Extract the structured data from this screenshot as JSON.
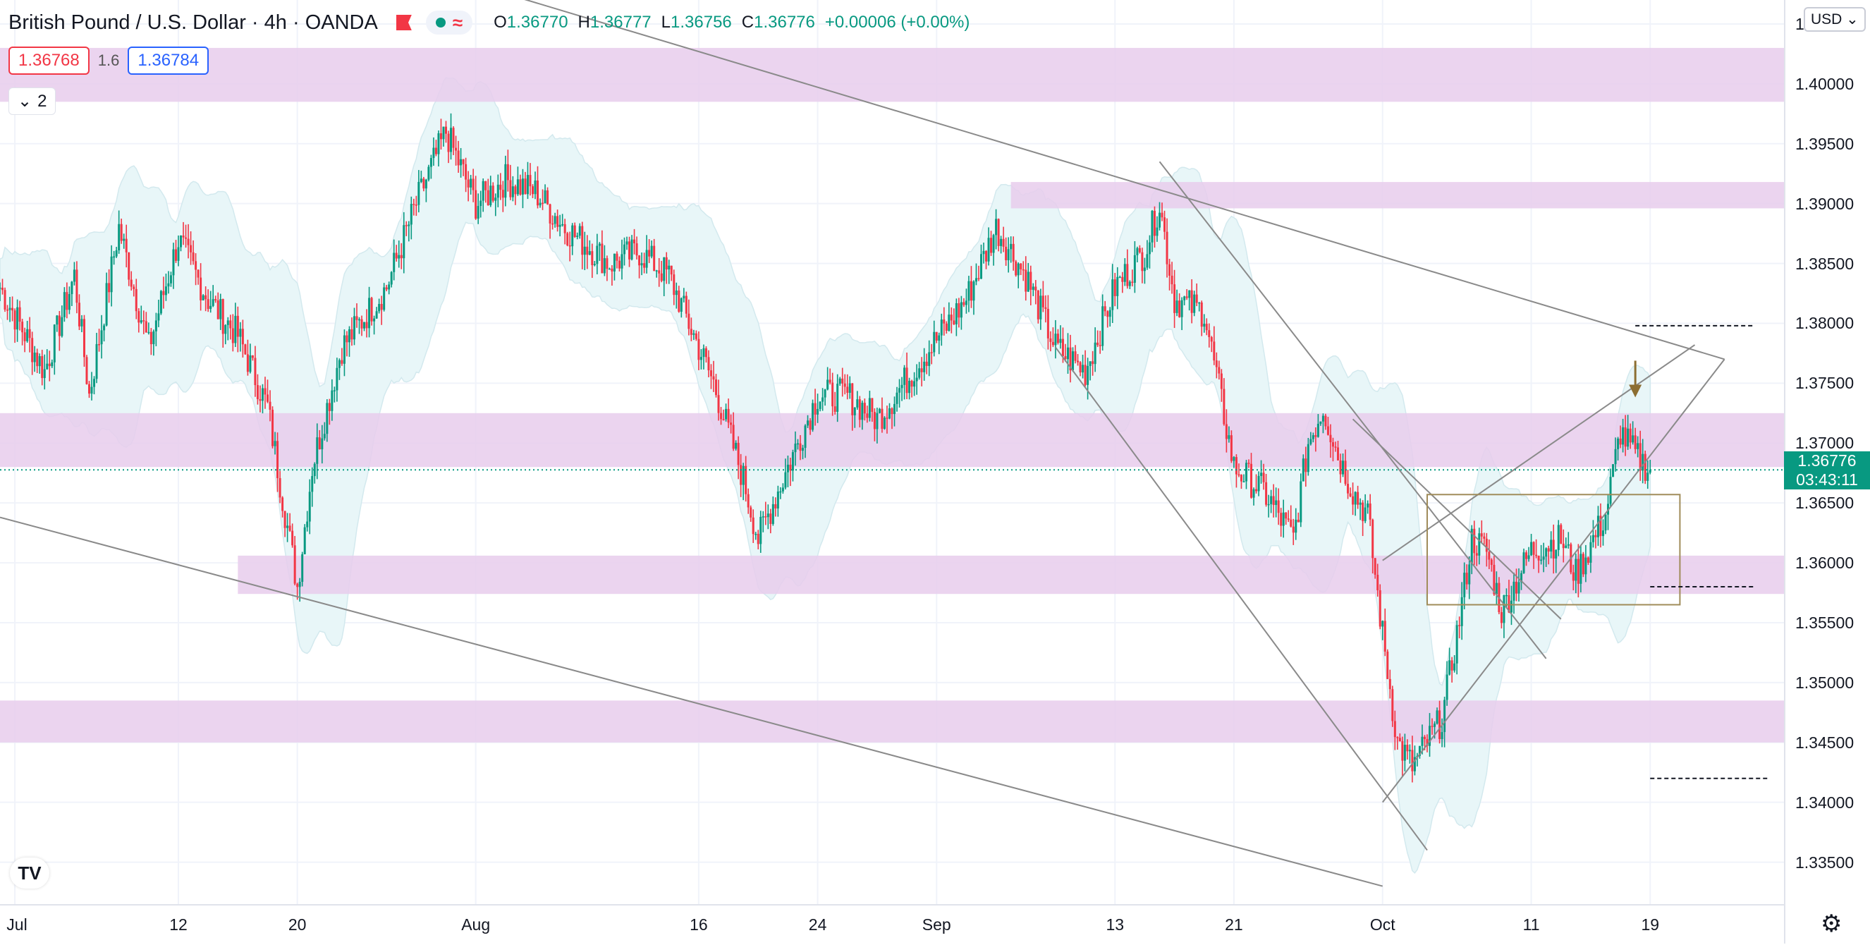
{
  "header": {
    "title": "British Pound / U.S. Dollar",
    "interval": "4h",
    "broker": "OANDA",
    "ohlc": {
      "open_label": "O",
      "open": "1.36770",
      "high_label": "H",
      "high": "1.36777",
      "low_label": "L",
      "low": "1.36756",
      "close_label": "C",
      "close": "1.36776",
      "change": "+0.00006 (+0.00%)"
    }
  },
  "bid": "1.36768",
  "spread": "1.6",
  "ask": "1.36784",
  "indicators_count": "2",
  "currency": "USD",
  "last_price": {
    "price": "1.36776",
    "countdown": "03:43:11",
    "value": 1.36776
  },
  "colors": {
    "up": "#089981",
    "down": "#f23645",
    "zone": "#e7cdec",
    "band": "#e8f6f8",
    "trendline": "#8a8a8a",
    "box": "#a08c5a",
    "arrow": "#8c6e32"
  },
  "chart_data": {
    "type": "candlestick",
    "symbol": "GBPUSD",
    "timeframe": "4h",
    "x_range": [
      "2021-06-30",
      "2021-10-28"
    ],
    "y_range": [
      1.3315,
      1.407
    ],
    "price_ticks": [
      "1.40500",
      "1.40000",
      "1.39500",
      "1.39000",
      "1.38500",
      "1.38000",
      "1.37500",
      "1.37000",
      "1.36500",
      "1.36000",
      "1.35500",
      "1.35000",
      "1.34500",
      "1.34000",
      "1.33500"
    ],
    "time_ticks": [
      {
        "label": "Jul",
        "date": "2021-07-01"
      },
      {
        "label": "12",
        "date": "2021-07-12"
      },
      {
        "label": "20",
        "date": "2021-07-20"
      },
      {
        "label": "Aug",
        "date": "2021-08-01"
      },
      {
        "label": "16",
        "date": "2021-08-16"
      },
      {
        "label": "24",
        "date": "2021-08-24"
      },
      {
        "label": "Sep",
        "date": "2021-09-01"
      },
      {
        "label": "13",
        "date": "2021-09-13"
      },
      {
        "label": "21",
        "date": "2021-09-21"
      },
      {
        "label": "Oct",
        "date": "2021-10-01"
      },
      {
        "label": "11",
        "date": "2021-10-11"
      },
      {
        "label": "19",
        "date": "2021-10-19"
      }
    ],
    "price_path": [
      [
        "2021-06-30",
        1.383
      ],
      [
        "2021-07-03",
        1.376
      ],
      [
        "2021-07-05",
        1.384
      ],
      [
        "2021-07-06",
        1.374
      ],
      [
        "2021-07-08",
        1.388
      ],
      [
        "2021-07-10",
        1.378
      ],
      [
        "2021-07-12",
        1.387
      ],
      [
        "2021-07-14",
        1.382
      ],
      [
        "2021-07-16",
        1.379
      ],
      [
        "2021-07-18",
        1.373
      ],
      [
        "2021-07-20",
        1.358
      ],
      [
        "2021-07-21",
        1.368
      ],
      [
        "2021-07-23",
        1.378
      ],
      [
        "2021-07-26",
        1.383
      ],
      [
        "2021-07-28",
        1.39
      ],
      [
        "2021-07-30",
        1.396
      ],
      [
        "2021-08-01",
        1.39
      ],
      [
        "2021-08-03",
        1.392
      ],
      [
        "2021-08-05",
        1.391
      ],
      [
        "2021-08-07",
        1.388
      ],
      [
        "2021-08-10",
        1.385
      ],
      [
        "2021-08-12",
        1.386
      ],
      [
        "2021-08-14",
        1.384
      ],
      [
        "2021-08-17",
        1.375
      ],
      [
        "2021-08-19",
        1.367
      ],
      [
        "2021-08-20",
        1.362
      ],
      [
        "2021-08-22",
        1.368
      ],
      [
        "2021-08-24",
        1.374
      ],
      [
        "2021-08-26",
        1.374
      ],
      [
        "2021-08-28",
        1.372
      ],
      [
        "2021-08-31",
        1.377
      ],
      [
        "2021-09-03",
        1.382
      ],
      [
        "2021-09-05",
        1.388
      ],
      [
        "2021-09-07",
        1.384
      ],
      [
        "2021-09-09",
        1.378
      ],
      [
        "2021-09-11",
        1.376
      ],
      [
        "2021-09-13",
        1.383
      ],
      [
        "2021-09-15",
        1.386
      ],
      [
        "2021-09-16",
        1.39
      ],
      [
        "2021-09-17",
        1.382
      ],
      [
        "2021-09-19",
        1.381
      ],
      [
        "2021-09-21",
        1.368
      ],
      [
        "2021-09-23",
        1.366
      ],
      [
        "2021-09-25",
        1.362
      ],
      [
        "2021-09-26",
        1.37
      ],
      [
        "2021-09-27",
        1.373
      ],
      [
        "2021-09-28",
        1.369
      ],
      [
        "2021-09-29",
        1.366
      ],
      [
        "2021-09-30",
        1.364
      ],
      [
        "2021-10-01",
        1.354
      ],
      [
        "2021-10-02",
        1.345
      ],
      [
        "2021-10-03",
        1.343
      ],
      [
        "2021-10-05",
        1.347
      ],
      [
        "2021-10-06",
        1.354
      ],
      [
        "2021-10-07",
        1.362
      ],
      [
        "2021-10-08",
        1.361
      ],
      [
        "2021-10-09",
        1.356
      ],
      [
        "2021-10-11",
        1.361
      ],
      [
        "2021-10-13",
        1.362
      ],
      [
        "2021-10-14",
        1.359
      ],
      [
        "2021-10-16",
        1.364
      ],
      [
        "2021-10-17",
        1.371
      ],
      [
        "2021-10-18",
        1.369
      ],
      [
        "2021-10-19",
        1.36776
      ]
    ],
    "zones": [
      {
        "from": "2021-06-30",
        "low": 1.3985,
        "high": 1.403
      },
      {
        "from": "2021-09-06",
        "low": 1.3896,
        "high": 1.3918
      },
      {
        "from": "2021-06-30",
        "low": 1.368,
        "high": 1.3725
      },
      {
        "from": "2021-07-16",
        "low": 1.3574,
        "high": 1.3606
      },
      {
        "from": "2021-06-30",
        "low": 1.345,
        "high": 1.3485
      }
    ],
    "trendlines": [
      [
        [
          "2021-07-22",
          1.412
        ],
        [
          "2021-10-24",
          1.377
        ]
      ],
      [
        [
          "2021-06-30",
          1.3638
        ],
        [
          "2021-10-01",
          1.333
        ]
      ],
      [
        [
          "2021-09-16",
          1.3935
        ],
        [
          "2021-10-12",
          1.352
        ]
      ],
      [
        [
          "2021-09-09",
          1.378
        ],
        [
          "2021-10-04",
          1.336
        ]
      ],
      [
        [
          "2021-10-01",
          1.34
        ],
        [
          "2021-10-24",
          1.377
        ]
      ],
      [
        [
          "2021-10-01",
          1.3602
        ],
        [
          "2021-10-22",
          1.3782
        ]
      ],
      [
        [
          "2021-09-29",
          1.372
        ],
        [
          "2021-10-13",
          1.3553
        ]
      ]
    ],
    "range_box": {
      "from": "2021-10-04",
      "to": "2021-10-21",
      "low": 1.3565,
      "high": 1.3657
    },
    "dashed_levels": [
      {
        "from": "2021-10-18",
        "to": "2021-10-26",
        "value": 1.3798
      },
      {
        "from": "2021-10-19",
        "to": "2021-10-26",
        "value": 1.358
      },
      {
        "from": "2021-10-19",
        "to": "2021-10-27",
        "value": 1.342
      }
    ],
    "signal_arrow": {
      "date": "2021-10-18",
      "price": 1.3737
    }
  }
}
